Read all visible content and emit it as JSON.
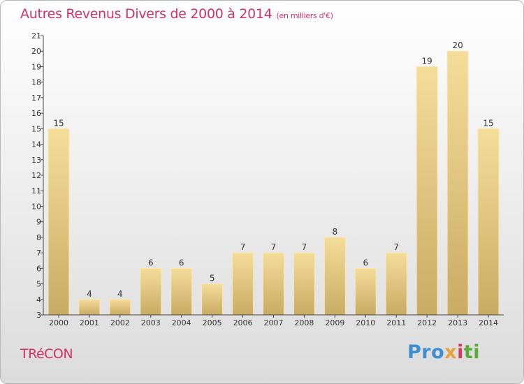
{
  "header": {
    "title": "Autres Revenus Divers de 2000 à 2014",
    "subtitle": "(en milliers d'€)"
  },
  "footer": {
    "commune": "TRéCON",
    "logo_text": "Proxiti",
    "logo_colors": [
      "#3d8fd1",
      "#e8a23a",
      "#d63b5a",
      "#5aaa3c"
    ]
  },
  "colors": {
    "bar_light": "#f5dd9a",
    "bar_dark": "#c9ac64",
    "title": "#d23264"
  },
  "chart_data": {
    "type": "bar",
    "title": "Autres Revenus Divers de 2000 à 2014",
    "subtitle": "(en milliers d'€)",
    "categories": [
      "2000",
      "2001",
      "2002",
      "2003",
      "2004",
      "2005",
      "2006",
      "2007",
      "2008",
      "2009",
      "2010",
      "2011",
      "2012",
      "2013",
      "2014"
    ],
    "values": [
      15,
      4,
      4,
      6,
      6,
      5,
      7,
      7,
      7,
      8,
      6,
      7,
      19,
      20,
      15
    ],
    "ylim": [
      3,
      21
    ],
    "yticks": [
      3,
      4,
      5,
      6,
      7,
      8,
      9,
      10,
      11,
      12,
      13,
      14,
      15,
      16,
      17,
      18,
      19,
      20,
      21
    ],
    "grid": false,
    "data_labels": true
  }
}
